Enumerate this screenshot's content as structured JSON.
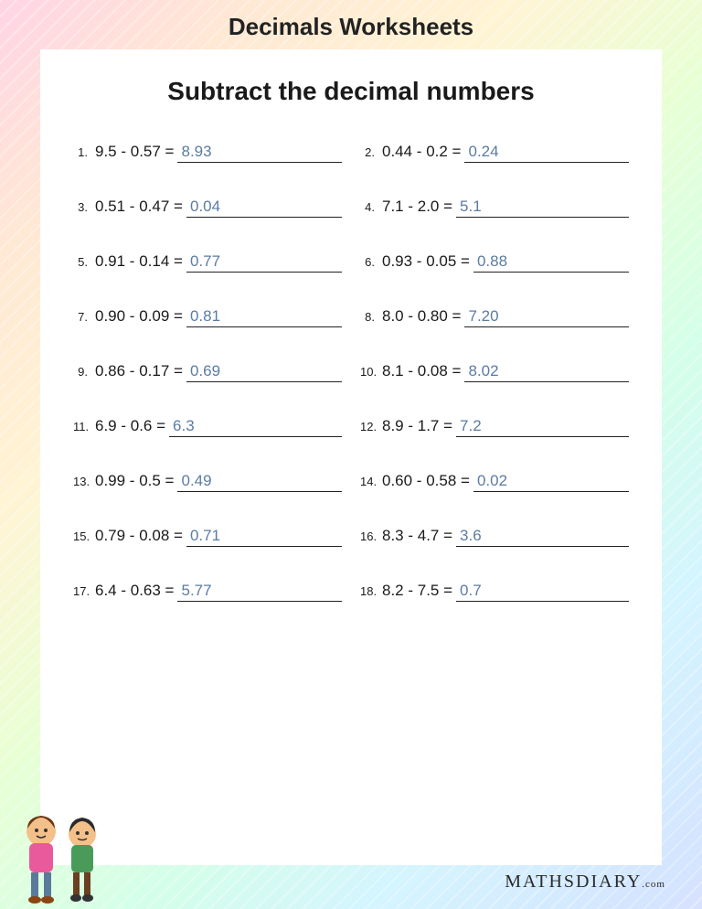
{
  "page_title": "Decimals Worksheets",
  "subtitle": "Subtract the decimal numbers",
  "footer_brand": "MATHSDIARY",
  "footer_tld": ".com",
  "answer_color": "#5b7ca3",
  "text_color": "#1a1a1a",
  "sheet_bg": "#ffffff",
  "problems": [
    {
      "n": "1.",
      "expr": "9.5 - 0.57 =",
      "ans": "8.93"
    },
    {
      "n": "2.",
      "expr": "0.44 - 0.2 =",
      "ans": "0.24"
    },
    {
      "n": "3.",
      "expr": "0.51 - 0.47 =",
      "ans": "0.04"
    },
    {
      "n": "4.",
      "expr": "7.1 - 2.0 =",
      "ans": "5.1"
    },
    {
      "n": "5.",
      "expr": "0.91 - 0.14 =",
      "ans": "0.77"
    },
    {
      "n": "6.",
      "expr": "0.93 - 0.05 =",
      "ans": "0.88"
    },
    {
      "n": "7.",
      "expr": "0.90 - 0.09 =",
      "ans": "0.81"
    },
    {
      "n": "8.",
      "expr": "8.0 - 0.80 =",
      "ans": "7.20"
    },
    {
      "n": "9.",
      "expr": "0.86 - 0.17 =",
      "ans": "0.69"
    },
    {
      "n": "10.",
      "expr": "8.1 - 0.08 =",
      "ans": "8.02"
    },
    {
      "n": "11.",
      "expr": "6.9 - 0.6 =",
      "ans": "6.3"
    },
    {
      "n": "12.",
      "expr": "8.9 - 1.7 =",
      "ans": "7.2"
    },
    {
      "n": "13.",
      "expr": "0.99 - 0.5 =",
      "ans": "0.49"
    },
    {
      "n": "14.",
      "expr": "0.60 - 0.58 =",
      "ans": "0.02"
    },
    {
      "n": "15.",
      "expr": "0.79 - 0.08 =",
      "ans": "0.71"
    },
    {
      "n": "16.",
      "expr": "8.3 - 4.7 =",
      "ans": "3.6"
    },
    {
      "n": "17.",
      "expr": "6.4 - 0.63 =",
      "ans": "5.77"
    },
    {
      "n": "18.",
      "expr": "8.2 - 7.5 =",
      "ans": "0.7"
    }
  ]
}
